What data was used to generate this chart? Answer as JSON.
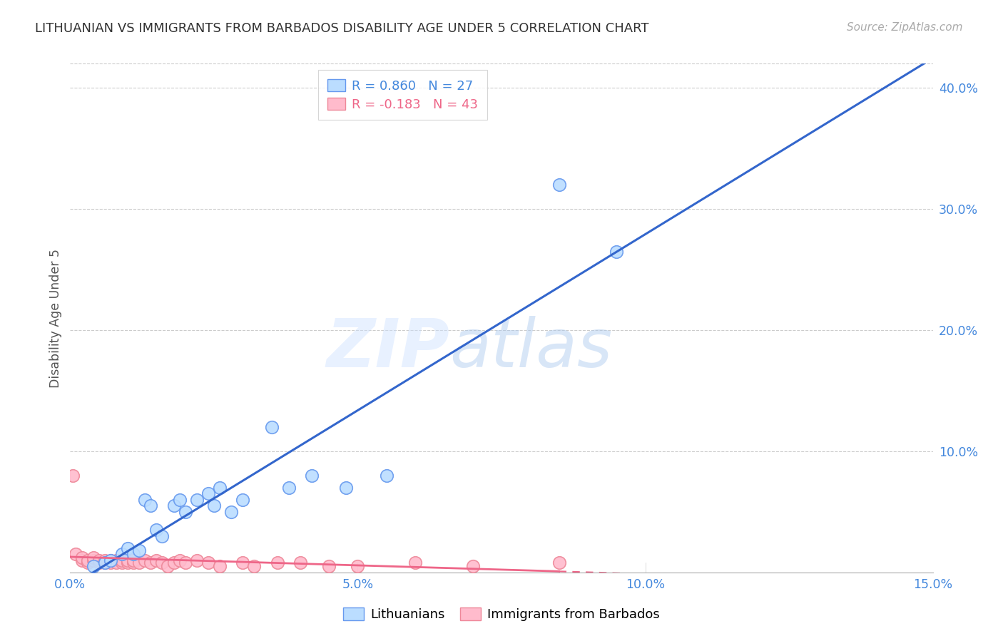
{
  "title": "LITHUANIAN VS IMMIGRANTS FROM BARBADOS DISABILITY AGE UNDER 5 CORRELATION CHART",
  "source": "Source: ZipAtlas.com",
  "ylabel": "Disability Age Under 5",
  "xlim": [
    0.0,
    0.15
  ],
  "ylim": [
    0.0,
    0.42
  ],
  "xticks": [
    0.0,
    0.05,
    0.1,
    0.15
  ],
  "yticks": [
    0.1,
    0.2,
    0.3,
    0.4
  ],
  "ytick_labels": [
    "10.0%",
    "20.0%",
    "30.0%",
    "40.0%"
  ],
  "xtick_labels": [
    "0.0%",
    "5.0%",
    "10.0%",
    "15.0%"
  ],
  "grid_color": "#cccccc",
  "background_color": "#ffffff",
  "axis_color": "#4488dd",
  "legend_r1": "R = 0.860",
  "legend_n1": "N = 27",
  "legend_r2": "R = -0.183",
  "legend_n2": "N = 43",
  "blue_edge": "#6699ee",
  "blue_fill": "#bbddff",
  "pink_edge": "#ee8899",
  "pink_fill": "#ffbbcc",
  "blue_line_color": "#3366cc",
  "pink_line_color": "#ee6688",
  "lit_x": [
    0.004,
    0.006,
    0.007,
    0.009,
    0.01,
    0.011,
    0.012,
    0.013,
    0.014,
    0.015,
    0.016,
    0.018,
    0.019,
    0.02,
    0.022,
    0.024,
    0.025,
    0.026,
    0.028,
    0.03,
    0.035,
    0.038,
    0.042,
    0.048,
    0.055,
    0.085,
    0.095
  ],
  "lit_y": [
    0.005,
    0.008,
    0.01,
    0.015,
    0.02,
    0.015,
    0.018,
    0.06,
    0.055,
    0.035,
    0.03,
    0.055,
    0.06,
    0.05,
    0.06,
    0.065,
    0.055,
    0.07,
    0.05,
    0.06,
    0.12,
    0.07,
    0.08,
    0.07,
    0.08,
    0.32,
    0.265
  ],
  "barb_x": [
    0.0005,
    0.001,
    0.002,
    0.002,
    0.003,
    0.003,
    0.004,
    0.004,
    0.005,
    0.005,
    0.006,
    0.006,
    0.007,
    0.007,
    0.008,
    0.008,
    0.009,
    0.009,
    0.01,
    0.01,
    0.011,
    0.011,
    0.012,
    0.013,
    0.014,
    0.015,
    0.016,
    0.017,
    0.018,
    0.019,
    0.02,
    0.022,
    0.024,
    0.026,
    0.03,
    0.032,
    0.036,
    0.04,
    0.045,
    0.05,
    0.06,
    0.07,
    0.085
  ],
  "barb_y": [
    0.08,
    0.015,
    0.01,
    0.012,
    0.008,
    0.01,
    0.01,
    0.012,
    0.008,
    0.01,
    0.008,
    0.01,
    0.008,
    0.01,
    0.01,
    0.008,
    0.008,
    0.01,
    0.008,
    0.01,
    0.008,
    0.01,
    0.008,
    0.01,
    0.008,
    0.01,
    0.008,
    0.005,
    0.008,
    0.01,
    0.008,
    0.01,
    0.008,
    0.005,
    0.008,
    0.005,
    0.008,
    0.008,
    0.005,
    0.005,
    0.008,
    0.005,
    0.008
  ],
  "watermark_zip": "ZIP",
  "watermark_atlas": "atlas",
  "marker_size": 160
}
